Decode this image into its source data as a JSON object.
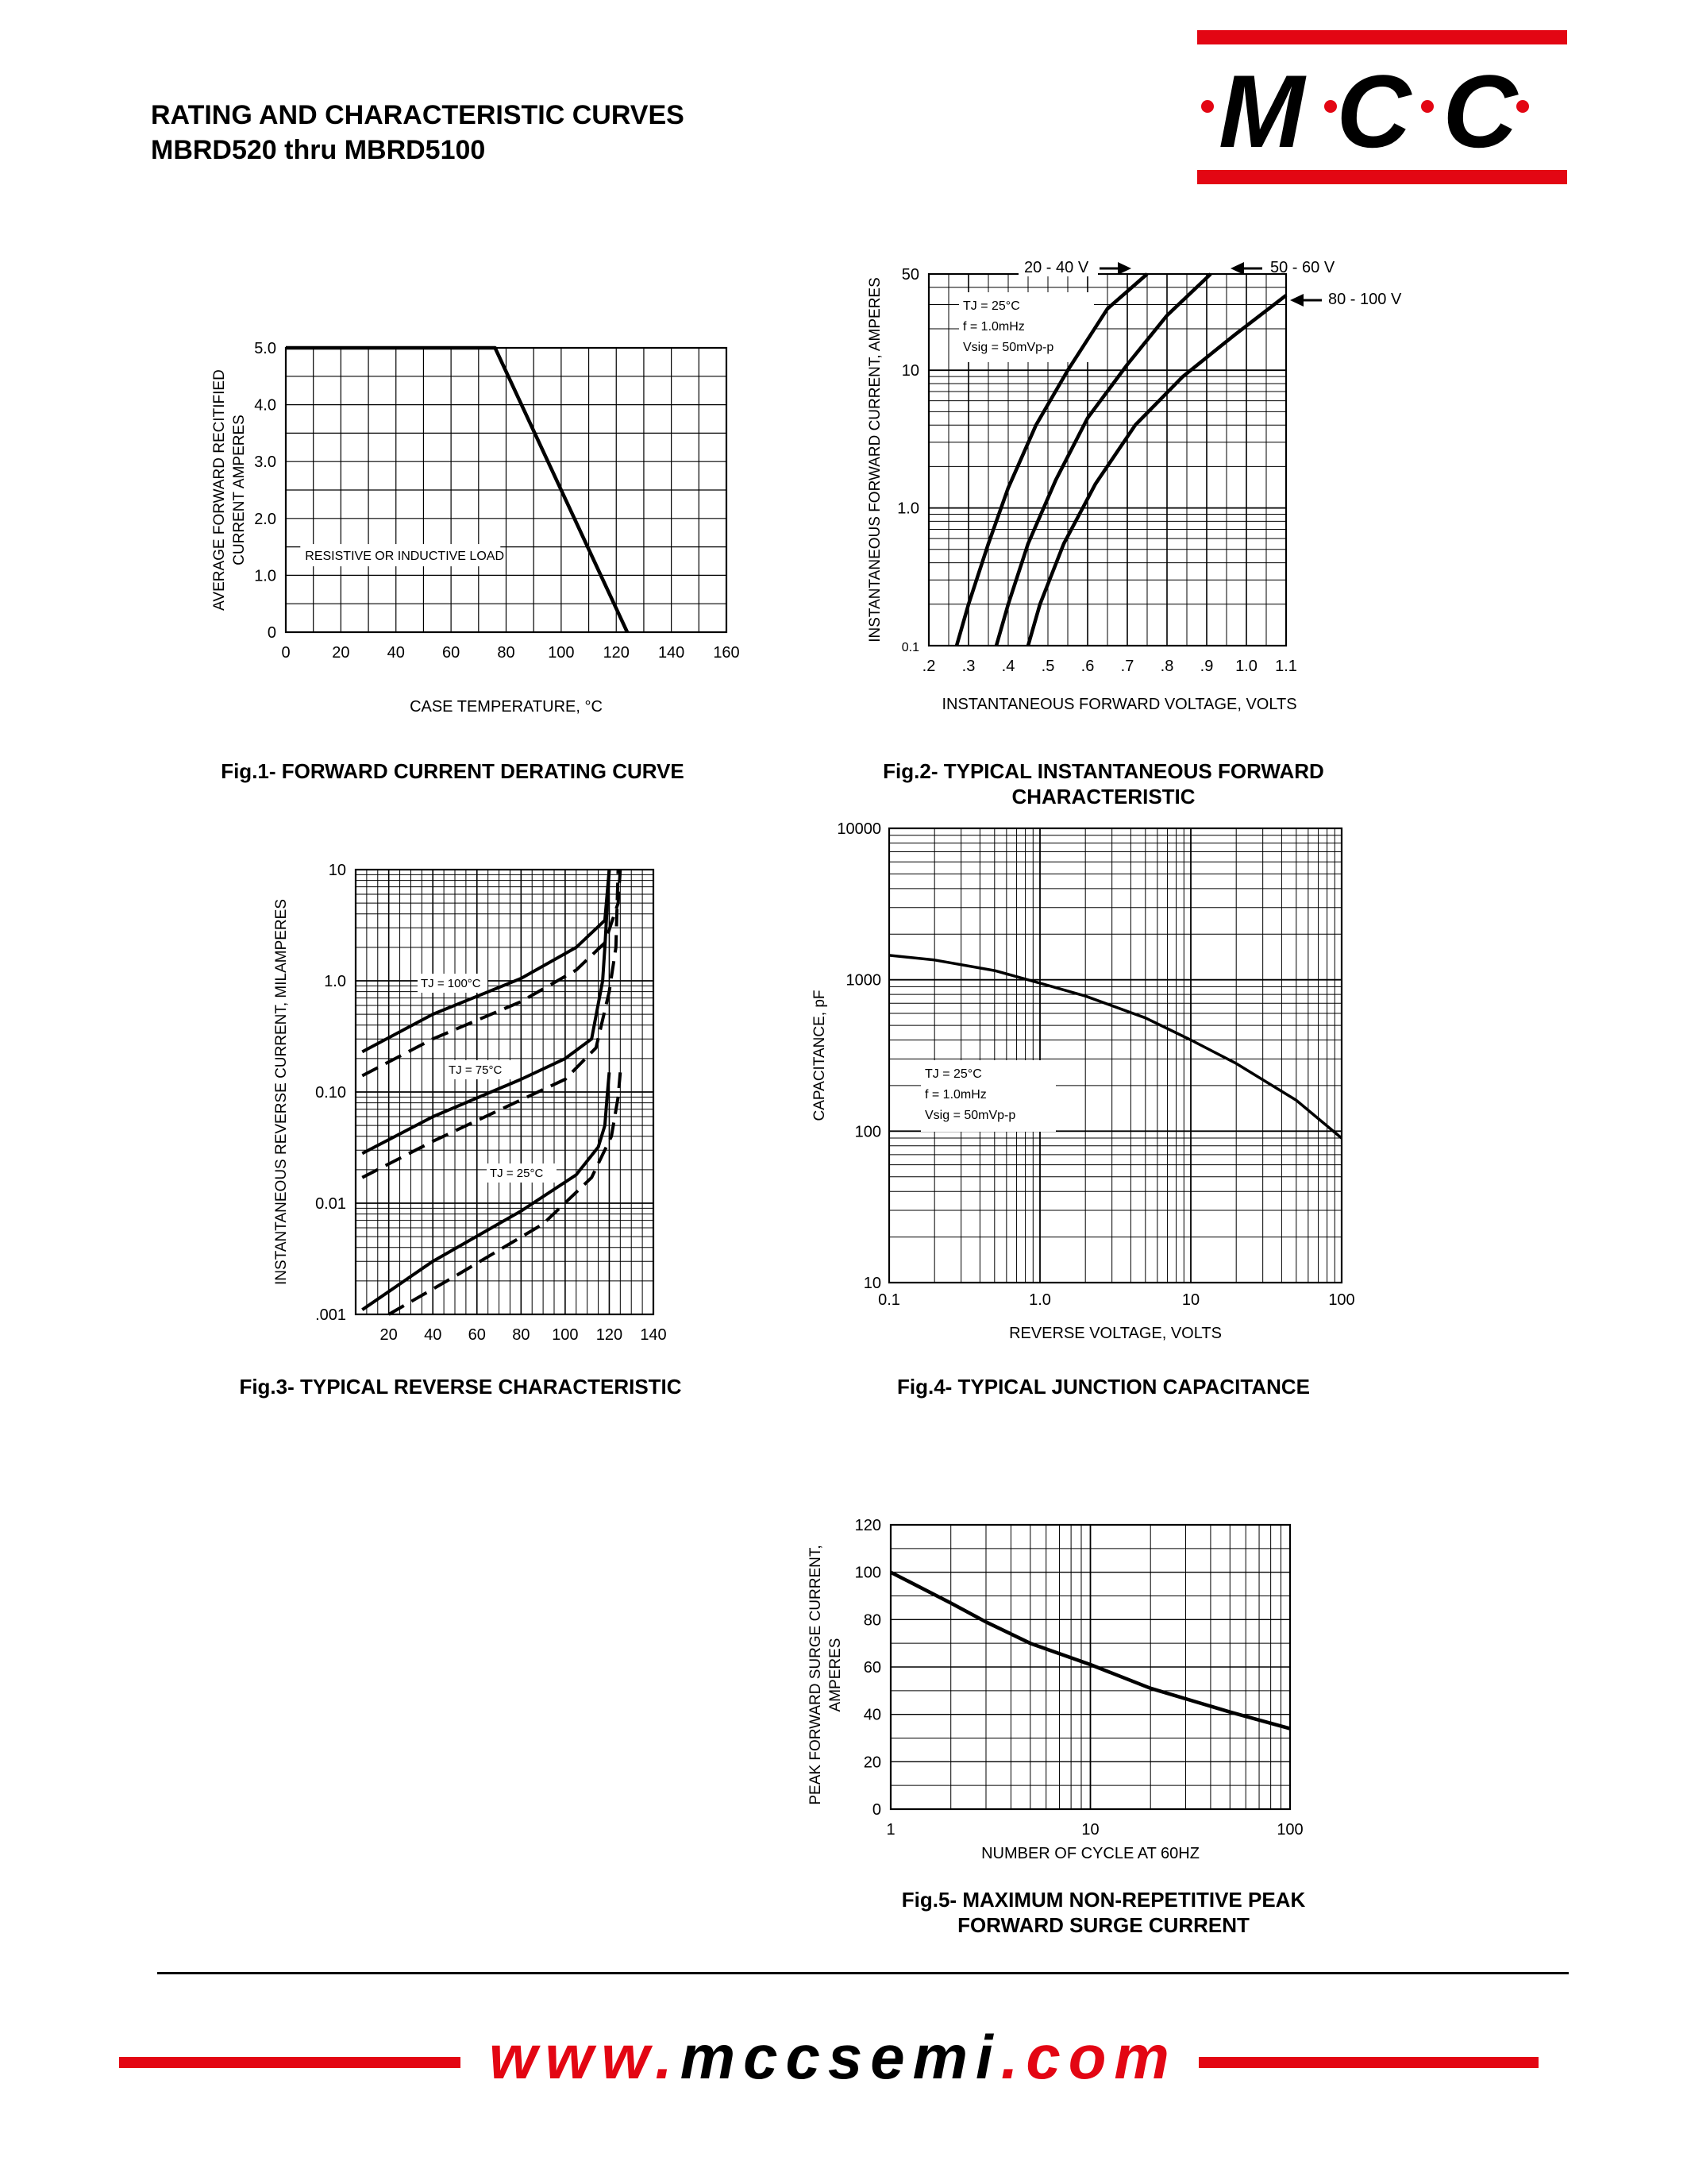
{
  "header": {
    "title_line1": "RATING AND CHARACTERISTIC CURVES",
    "title_line2": "MBRD520 thru MBRD5100",
    "logo_text": "M C C"
  },
  "footer": {
    "url_prefix": "www.",
    "url_middle": "mccsemi",
    "url_suffix": ".com"
  },
  "colors": {
    "brand_red": "#e30613",
    "ink": "#000000"
  },
  "captions": {
    "fig1": "Fig.1- FORWARD CURRENT DERATING CURVE",
    "fig2_line1": "Fig.2- TYPICAL INSTANTANEOUS FORWARD",
    "fig2_line2": "CHARACTERISTIC",
    "fig3": "Fig.3- TYPICAL REVERSE CHARACTERISTIC",
    "fig4": "Fig.4- TYPICAL JUNCTION CAPACITANCE",
    "fig5_line1": "Fig.5- MAXIMUM NON-REPETITIVE PEAK",
    "fig5_line2": "FORWARD SURGE CURRENT"
  },
  "chart_data": [
    {
      "id": "fig1",
      "type": "line",
      "xlabel": "CASE TEMPERATURE, °C",
      "ylabel_line1": "AVERAGE FORWARD RECITIFIED",
      "ylabel_line2": "CURRENT AMPERES",
      "xlim": [
        0,
        160
      ],
      "ylim": [
        0,
        5
      ],
      "x_ticks": [
        "0",
        "20",
        "40",
        "60",
        "80",
        "100",
        "120",
        "140",
        "160"
      ],
      "y_ticks": [
        "0",
        "1.0",
        "2.0",
        "3.0",
        "4.0",
        "5.0"
      ],
      "annotations": [
        "RESISTIVE OR INDUCTIVE LOAD"
      ],
      "series": [
        {
          "x": [
            0,
            76,
            124
          ],
          "y": [
            5,
            5,
            0
          ],
          "style": "solid"
        }
      ]
    },
    {
      "id": "fig2",
      "type": "line",
      "yscale": "log",
      "xlabel": "INSTANTANEOUS FORWARD VOLTAGE, VOLTS",
      "ylabel": "INSTANTANEOUS FORWARD CURRENT, AMPERES",
      "xlim": [
        0.2,
        1.1
      ],
      "ylim": [
        0.1,
        50
      ],
      "x_ticks": [
        ".2",
        ".3",
        ".4",
        ".5",
        ".6",
        ".7",
        ".8",
        ".9",
        "1.0",
        "1.1"
      ],
      "y_ticks": [
        "0.1",
        "1.0",
        "10",
        "50"
      ],
      "annotations": [
        "TJ = 25°C",
        "f = 1.0mHz",
        "Vsig = 50mVp-p"
      ],
      "series": [
        {
          "name": "20 - 40 V",
          "x": [
            0.27,
            0.3,
            0.35,
            0.4,
            0.47,
            0.55,
            0.65,
            0.75
          ],
          "y": [
            0.1,
            0.2,
            0.55,
            1.4,
            4,
            10,
            28,
            50
          ]
        },
        {
          "name": "50 - 60 V",
          "x": [
            0.37,
            0.4,
            0.45,
            0.52,
            0.6,
            0.7,
            0.8,
            0.91
          ],
          "y": [
            0.1,
            0.2,
            0.55,
            1.6,
            4.5,
            11,
            25,
            50
          ]
        },
        {
          "name": "80 - 100 V",
          "x": [
            0.45,
            0.48,
            0.54,
            0.62,
            0.72,
            0.84,
            0.97,
            1.1
          ],
          "y": [
            0.1,
            0.2,
            0.55,
            1.5,
            4,
            9,
            18,
            35
          ]
        }
      ]
    },
    {
      "id": "fig3",
      "type": "line",
      "yscale": "log",
      "xlabel": "",
      "ylabel": "INSTANTANEOUS REVERSE CURRENT, MILAMPERES",
      "xlim": [
        5,
        140
      ],
      "ylim": [
        0.001,
        10
      ],
      "x_ticks": [
        "20",
        "40",
        "60",
        "80",
        "100",
        "120",
        "140"
      ],
      "y_ticks": [
        ".001",
        "0.01",
        "0.10",
        "1.0",
        "10"
      ],
      "annotations": [
        "TJ = 100°C",
        "TJ = 75°C",
        "TJ = 25°C"
      ],
      "series": [
        {
          "name": "TJ = 100°C",
          "style": "solid",
          "x": [
            8,
            40,
            80,
            105,
            118,
            120,
            120
          ],
          "y": [
            0.23,
            0.5,
            1.05,
            2.0,
            3.5,
            10,
            10
          ]
        },
        {
          "name": "TJ = 100°C",
          "style": "dashed",
          "x": [
            8,
            40,
            80,
            105,
            118,
            124,
            125
          ],
          "y": [
            0.14,
            0.3,
            0.65,
            1.25,
            2.2,
            5,
            10
          ]
        },
        {
          "name": "TJ = 75°C",
          "style": "solid",
          "x": [
            8,
            40,
            80,
            100,
            112,
            117,
            118,
            120,
            120
          ],
          "y": [
            0.028,
            0.06,
            0.13,
            0.2,
            0.3,
            1.0,
            2.0,
            10,
            10
          ]
        },
        {
          "name": "TJ = 75°C",
          "style": "dashed",
          "x": [
            8,
            40,
            80,
            100,
            114,
            120,
            123,
            124
          ],
          "y": [
            0.017,
            0.036,
            0.085,
            0.13,
            0.25,
            0.8,
            2.0,
            10
          ]
        },
        {
          "name": "TJ = 25°C",
          "style": "solid",
          "x": [
            8,
            40,
            80,
            105,
            115,
            118,
            119,
            120
          ],
          "y": [
            0.0011,
            0.003,
            0.0085,
            0.018,
            0.032,
            0.05,
            0.09,
            0.15
          ]
        },
        {
          "name": "TJ = 25°C",
          "style": "dashed",
          "x": [
            20,
            50,
            90,
            112,
            121,
            124,
            125
          ],
          "y": [
            0.001,
            0.0022,
            0.0065,
            0.017,
            0.04,
            0.09,
            0.15
          ]
        }
      ]
    },
    {
      "id": "fig4",
      "type": "line",
      "xscale": "log",
      "yscale": "log",
      "xlabel": "REVERSE VOLTAGE, VOLTS",
      "ylabel": "CAPACITANCE, pF",
      "xlim": [
        0.1,
        100
      ],
      "ylim": [
        10,
        10000
      ],
      "x_ticks": [
        "0.1",
        "1.0",
        "10",
        "100"
      ],
      "y_ticks": [
        "10",
        "100",
        "1000",
        "10000"
      ],
      "annotations": [
        "TJ = 25°C",
        "f = 1.0mHz",
        "Vsig = 50mVp-p"
      ],
      "series": [
        {
          "x": [
            0.1,
            0.2,
            0.5,
            1,
            2,
            5,
            10,
            20,
            50,
            100
          ],
          "y": [
            1450,
            1350,
            1150,
            950,
            780,
            560,
            400,
            280,
            160,
            90
          ]
        }
      ]
    },
    {
      "id": "fig5",
      "type": "line",
      "xscale": "log",
      "xlabel": "NUMBER OF CYCLE AT 60HZ",
      "ylabel_line1": "PEAK FORWARD SURGE CURRENT,",
      "ylabel_line2": "AMPERES",
      "xlim": [
        1,
        100
      ],
      "ylim": [
        0,
        120
      ],
      "x_ticks": [
        "1",
        "10",
        "100"
      ],
      "y_ticks": [
        "0",
        "20",
        "40",
        "60",
        "80",
        "100",
        "120"
      ],
      "series": [
        {
          "x": [
            1,
            2,
            3,
            5,
            10,
            20,
            50,
            100
          ],
          "y": [
            100,
            87,
            79,
            70,
            61,
            51,
            41,
            34
          ]
        }
      ]
    }
  ]
}
